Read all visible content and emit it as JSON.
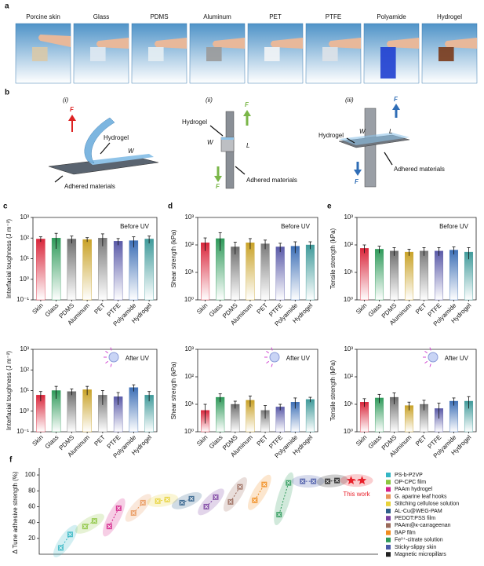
{
  "panel_a": {
    "label": "a",
    "photos": [
      "Porcine skin",
      "Glass",
      "PDMS",
      "Aluminum",
      "PET",
      "PTFE",
      "Polyamide",
      "Hydrogel"
    ]
  },
  "panel_b": {
    "label": "b",
    "diagrams": [
      {
        "label": "(i)",
        "texts": [
          "F",
          "Hydrogel",
          "W",
          "Adhered materials"
        ]
      },
      {
        "label": "(ii)",
        "texts": [
          "F",
          "Hydrogel",
          "W",
          "L",
          "F",
          "Adhered materials"
        ]
      },
      {
        "label": "(iii)",
        "texts": [
          "F",
          "Hydrogel",
          "W",
          "L",
          "Adhered materials",
          "F"
        ]
      }
    ]
  },
  "chart_data": [
    {
      "type": "bar",
      "panel": "c",
      "annotation": "Before UV",
      "y_label": "Interfacial toughness (J m⁻²)",
      "log_scale": true,
      "categories": [
        "Skin",
        "Glass",
        "PDMS",
        "Aluminum",
        "PET",
        "PTFE",
        "Polyamide",
        "Hydrogel"
      ],
      "values": [
        90,
        100,
        90,
        85,
        100,
        70,
        75,
        90
      ],
      "errors": [
        25,
        70,
        35,
        20,
        60,
        25,
        40,
        35
      ],
      "colors": [
        "#d9263b",
        "#2f9a5a",
        "#6e6e6e",
        "#c9a227",
        "#7a7a7a",
        "#5a5aa8",
        "#3d6fb6",
        "#3f9a9a"
      ],
      "ylim": [
        0.1,
        1000
      ],
      "yticks": [
        {
          "value": 0.1,
          "label": "10⁻¹"
        },
        {
          "value": 1,
          "label": "10⁰"
        },
        {
          "value": 10,
          "label": "10¹"
        },
        {
          "value": 100,
          "label": "10²"
        },
        {
          "value": 1000,
          "label": "10³"
        }
      ]
    },
    {
      "type": "bar",
      "annotation": "After UV",
      "y_label": "Interfacial toughness (J m⁻²)",
      "log_scale": true,
      "categories": [
        "Skin",
        "Glass",
        "PDMS",
        "Aluminum",
        "PET",
        "PTFE",
        "Polyamide",
        "Hydrogel"
      ],
      "values": [
        6,
        10,
        9,
        11,
        6,
        5,
        14,
        6
      ],
      "errors": [
        3,
        6,
        3,
        5,
        4,
        3,
        5,
        3
      ],
      "colors": [
        "#d9263b",
        "#2f9a5a",
        "#6e6e6e",
        "#c9a227",
        "#7a7a7a",
        "#5a5aa8",
        "#3d6fb6",
        "#3f9a9a"
      ],
      "ylim": [
        0.1,
        1000
      ],
      "yticks": [
        {
          "value": 0.1,
          "label": "10⁻¹"
        },
        {
          "value": 1,
          "label": "10⁰"
        },
        {
          "value": 10,
          "label": "10¹"
        },
        {
          "value": 100,
          "label": "10²"
        },
        {
          "value": 1000,
          "label": "10³"
        }
      ]
    },
    {
      "type": "bar",
      "panel": "d",
      "annotation": "Before UV",
      "y_label": "Shear strength (kPa)",
      "log_scale": true,
      "categories": [
        "Skin",
        "Glass",
        "PDMS",
        "Aluminum",
        "PET",
        "PTFE",
        "Polyamide",
        "Hydrogel"
      ],
      "values": [
        120,
        170,
        85,
        120,
        110,
        85,
        90,
        100
      ],
      "errors": [
        60,
        110,
        40,
        50,
        40,
        30,
        40,
        30
      ],
      "colors": [
        "#d9263b",
        "#2f9a5a",
        "#6e6e6e",
        "#c9a227",
        "#7a7a7a",
        "#5a5aa8",
        "#3d6fb6",
        "#3f9a9a"
      ],
      "ylim": [
        1,
        1000
      ],
      "yticks": [
        {
          "value": 1,
          "label": "10⁰"
        },
        {
          "value": 10,
          "label": "10¹"
        },
        {
          "value": 100,
          "label": "10²"
        },
        {
          "value": 1000,
          "label": "10³"
        }
      ]
    },
    {
      "type": "bar",
      "annotation": "After UV",
      "y_label": "Shear strength (kPa)",
      "log_scale": true,
      "categories": [
        "Skin",
        "Glass",
        "PDMS",
        "Aluminum",
        "PET",
        "PTFE",
        "Polyamide",
        "Hydrogel"
      ],
      "values": [
        6,
        18,
        10,
        14,
        6,
        8,
        12,
        15
      ],
      "errors": [
        4,
        6,
        3,
        6,
        3,
        2,
        5,
        3
      ],
      "colors": [
        "#d9263b",
        "#2f9a5a",
        "#6e6e6e",
        "#c9a227",
        "#7a7a7a",
        "#5a5aa8",
        "#3d6fb6",
        "#3f9a9a"
      ],
      "ylim": [
        1,
        1000
      ],
      "yticks": [
        {
          "value": 1,
          "label": "10⁰"
        },
        {
          "value": 10,
          "label": "10¹"
        },
        {
          "value": 100,
          "label": "10²"
        },
        {
          "value": 1000,
          "label": "10³"
        }
      ]
    },
    {
      "type": "bar",
      "panel": "e",
      "annotation": "Before UV",
      "y_label": "Tensile strength (kPa)",
      "log_scale": true,
      "categories": [
        "Skin",
        "Glass",
        "PDMS",
        "Aluminum",
        "PET",
        "PTFE",
        "Polyamide",
        "Hydrogel"
      ],
      "values": [
        75,
        70,
        60,
        55,
        60,
        60,
        65,
        55
      ],
      "errors": [
        25,
        20,
        20,
        15,
        20,
        20,
        20,
        25
      ],
      "colors": [
        "#d9263b",
        "#2f9a5a",
        "#6e6e6e",
        "#c9a227",
        "#7a7a7a",
        "#5a5aa8",
        "#3d6fb6",
        "#3f9a9a"
      ],
      "ylim": [
        1,
        1000
      ],
      "yticks": [
        {
          "value": 1,
          "label": "10⁰"
        },
        {
          "value": 10,
          "label": "10¹"
        },
        {
          "value": 100,
          "label": "10²"
        },
        {
          "value": 1000,
          "label": "10³"
        }
      ]
    },
    {
      "type": "bar",
      "annotation": "After UV",
      "y_label": "Tensile strength (kPa)",
      "log_scale": true,
      "categories": [
        "Skin",
        "Glass",
        "PDMS",
        "Aluminum",
        "PET",
        "PTFE",
        "Polyamide",
        "Hydrogel"
      ],
      "values": [
        12,
        17,
        18,
        9,
        10,
        7,
        13,
        13
      ],
      "errors": [
        4,
        6,
        8,
        3,
        4,
        4,
        4,
        6
      ],
      "colors": [
        "#d9263b",
        "#2f9a5a",
        "#6e6e6e",
        "#c9a227",
        "#7a7a7a",
        "#5a5aa8",
        "#3d6fb6",
        "#3f9a9a"
      ],
      "ylim": [
        1,
        1000
      ],
      "yticks": [
        {
          "value": 1,
          "label": "10⁰"
        },
        {
          "value": 10,
          "label": "10¹"
        },
        {
          "value": 100,
          "label": "10²"
        },
        {
          "value": 1000,
          "label": "10³"
        }
      ]
    },
    {
      "type": "dumbbell",
      "panel": "f",
      "y_label": "Δ Tune adhesive strength (%)",
      "ylim": [
        0,
        105
      ],
      "yticks": [
        20,
        40,
        60,
        80,
        100
      ],
      "series": [
        {
          "name": "PS-b-P2VP",
          "color": "#35b6c4",
          "values": [
            8,
            25
          ]
        },
        {
          "name": "OP-CPC film",
          "color": "#8cc63f",
          "values": [
            35,
            42
          ]
        },
        {
          "name": "PAAm hydrogel",
          "color": "#d4208a",
          "values": [
            35,
            58
          ]
        },
        {
          "name": "G. aparine leaf hooks",
          "color": "#e8965a",
          "values": [
            52,
            65
          ]
        },
        {
          "name": "Stitching cellulose solution",
          "color": "#e8d23a",
          "values": [
            67,
            69
          ]
        },
        {
          "name": "AL-Cu@WEG-PAM",
          "color": "#2f5f8a",
          "values": [
            65,
            70
          ]
        },
        {
          "name": "PEDOT:PSS film",
          "color": "#7a3fa0",
          "values": [
            60,
            72
          ]
        },
        {
          "name": "PAAm@κ-carrageenan",
          "color": "#9a6a5a",
          "values": [
            66,
            85
          ]
        },
        {
          "name": "BAP film",
          "color": "#f08c1e",
          "values": [
            68,
            88
          ]
        },
        {
          "name": "Fe³⁺-citrate solution",
          "color": "#2e9a5a",
          "values": [
            50,
            90
          ]
        },
        {
          "name": "Sticky-slippy skin",
          "color": "#4a5aa8",
          "values": [
            92,
            92
          ]
        },
        {
          "name": "Magnetic micropillars",
          "color": "#222222",
          "values": [
            92,
            93
          ]
        },
        {
          "name": "This work",
          "color": "#e8202a",
          "marker": "star",
          "values": [
            93,
            93
          ]
        }
      ]
    }
  ]
}
